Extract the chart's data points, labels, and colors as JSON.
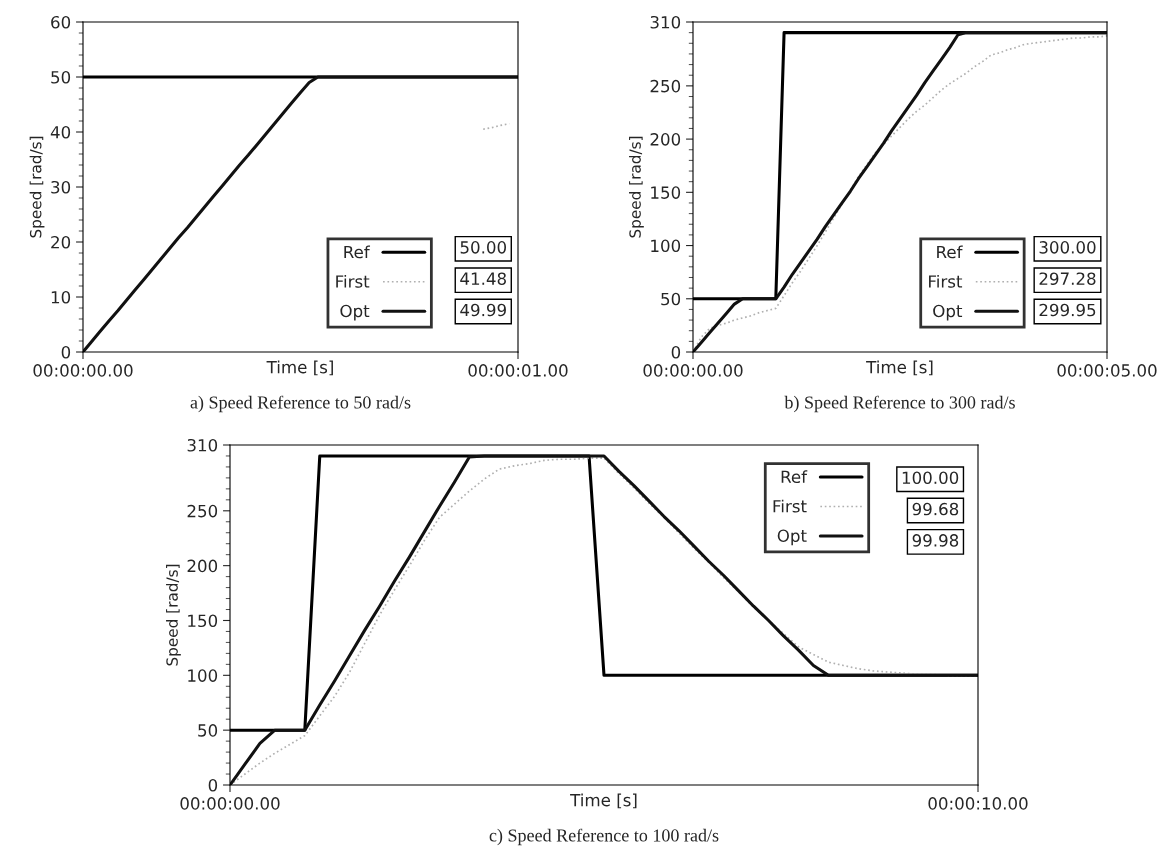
{
  "chart_data": [
    {
      "type": "line",
      "title": "a) Speed Reference to 50 rad/s",
      "xlabel": "Time [s]",
      "ylabel": "Speed [rad/s]",
      "categories": [
        "00:00:00.00",
        null,
        null,
        null,
        null,
        null,
        null,
        null,
        null,
        null,
        null,
        null,
        null,
        null,
        null,
        null,
        null,
        null,
        null,
        null,
        null,
        null,
        null,
        null,
        null,
        null,
        null,
        null,
        null,
        null,
        null,
        null,
        null,
        null,
        null,
        null,
        null,
        null,
        null,
        null,
        null,
        null,
        null,
        null,
        null,
        null,
        null,
        null,
        null,
        null,
        "00:00:01.00"
      ],
      "ylim": [
        0,
        60
      ],
      "yticks": [
        0,
        10,
        20,
        30,
        40,
        50,
        60
      ],
      "grid": false,
      "legend": "bottom right",
      "annotations": [
        "50.00",
        "41.48",
        "49.99"
      ],
      "series": [
        {
          "name": "Ref",
          "color": "#000000",
          "values": [
            50,
            50,
            50,
            50,
            50,
            50,
            50,
            50,
            50,
            50,
            50,
            50,
            50,
            50,
            50,
            50,
            50,
            50,
            50,
            50,
            50,
            50,
            50,
            50,
            50,
            50,
            50,
            50,
            50,
            50,
            50,
            50,
            50,
            50,
            50,
            50,
            50,
            50,
            50,
            50,
            50,
            50,
            50,
            50,
            50,
            50,
            50,
            50,
            50,
            50,
            50
          ]
        },
        {
          "name": "First",
          "color": "#b0b0b0",
          "line_style": "dotted",
          "values": [
            null,
            null,
            null,
            null,
            null,
            null,
            null,
            null,
            null,
            null,
            null,
            null,
            null,
            null,
            null,
            null,
            null,
            null,
            null,
            null,
            null,
            null,
            null,
            null,
            null,
            null,
            null,
            null,
            null,
            null,
            null,
            null,
            null,
            null,
            null,
            null,
            null,
            null,
            null,
            null,
            null,
            null,
            null,
            null,
            null,
            null,
            40.5,
            40.8,
            41.2,
            41.5,
            null
          ]
        },
        {
          "name": "Opt",
          "color": "#111111",
          "values": [
            0,
            1.9,
            3.8,
            5.7,
            7.5,
            9.4,
            11.3,
            13.2,
            15.1,
            17,
            18.9,
            20.8,
            22.6,
            24.5,
            26.4,
            28.3,
            30.2,
            32.1,
            34,
            35.8,
            37.7,
            39.6,
            41.5,
            43.4,
            45.3,
            47.2,
            49,
            50,
            50,
            50,
            50,
            50,
            50,
            50,
            50,
            50,
            50,
            50,
            50,
            50,
            50,
            50,
            50,
            50,
            50,
            50,
            50,
            50,
            50,
            50,
            50
          ]
        }
      ]
    },
    {
      "type": "line",
      "title": "b) Speed Reference to 300 rad/s",
      "xlabel": "Time [s]",
      "ylabel": "Speed [rad/s]",
      "categories": [
        "00:00:00.00",
        null,
        null,
        null,
        null,
        null,
        null,
        null,
        null,
        null,
        null,
        null,
        null,
        null,
        null,
        null,
        null,
        null,
        null,
        null,
        null,
        null,
        null,
        null,
        null,
        null,
        null,
        null,
        null,
        null,
        null,
        null,
        null,
        null,
        null,
        null,
        null,
        null,
        null,
        null,
        null,
        null,
        null,
        null,
        null,
        null,
        null,
        null,
        null,
        null,
        "00:00:05.00"
      ],
      "ylim": [
        0,
        310
      ],
      "yticks": [
        0,
        50,
        100,
        150,
        200,
        250,
        310
      ],
      "grid": false,
      "legend": "bottom right",
      "annotations": [
        "300.00",
        "297.28",
        "299.95"
      ],
      "series": [
        {
          "name": "Ref",
          "color": "#000000",
          "values": [
            50,
            50,
            50,
            50,
            50,
            50,
            50,
            50,
            50,
            50,
            50,
            300,
            300,
            300,
            300,
            300,
            300,
            300,
            300,
            300,
            300,
            300,
            300,
            300,
            300,
            300,
            300,
            300,
            300,
            300,
            300,
            300,
            300,
            300,
            300,
            300,
            300,
            300,
            300,
            300,
            300,
            300,
            300,
            300,
            300,
            300,
            300,
            300,
            300,
            300,
            300
          ]
        },
        {
          "name": "First",
          "color": "#b0b0b0",
          "line_style": "dotted",
          "values": [
            0,
            14,
            22,
            25,
            27,
            30,
            32,
            34,
            37,
            39,
            41,
            53,
            65,
            76,
            88,
            100,
            113,
            126,
            139,
            152,
            165,
            176,
            187,
            195,
            203,
            211,
            219,
            226,
            232,
            239,
            246,
            252,
            257,
            262,
            268,
            273,
            279,
            281,
            284,
            286,
            289,
            290,
            291,
            292,
            293,
            294,
            295,
            295,
            296,
            296,
            297
          ]
        },
        {
          "name": "Opt",
          "color": "#111111",
          "values": [
            0,
            9,
            18,
            27,
            36,
            45,
            50,
            50,
            50,
            50,
            50,
            61,
            73,
            84,
            95,
            106,
            118,
            129,
            140,
            151,
            163,
            174,
            185,
            196,
            208,
            219,
            230,
            241,
            253,
            264,
            275,
            286,
            298,
            300,
            300,
            300,
            300,
            300,
            300,
            300,
            300,
            300,
            300,
            300,
            300,
            300,
            300,
            300,
            300,
            300,
            300
          ]
        }
      ]
    },
    {
      "type": "line",
      "title": "c) Speed Reference to 100 rad/s",
      "xlabel": "Time [s]",
      "ylabel": "Speed [rad/s]",
      "categories": [
        "00:00:00.00",
        null,
        null,
        null,
        null,
        null,
        null,
        null,
        null,
        null,
        null,
        null,
        null,
        null,
        null,
        null,
        null,
        null,
        null,
        null,
        null,
        null,
        null,
        null,
        null,
        null,
        null,
        null,
        null,
        null,
        null,
        null,
        null,
        null,
        null,
        null,
        null,
        null,
        null,
        null,
        null,
        null,
        null,
        null,
        null,
        null,
        null,
        null,
        null,
        null,
        "00:00:10.00"
      ],
      "ylim": [
        0,
        310
      ],
      "yticks": [
        0,
        50,
        100,
        150,
        200,
        250,
        310
      ],
      "grid": false,
      "legend": "top right",
      "annotations": [
        "100.00",
        "99.68",
        "99.98"
      ],
      "series": [
        {
          "name": "Ref",
          "color": "#000000",
          "values": [
            50,
            50,
            50,
            50,
            50,
            50,
            300,
            300,
            300,
            300,
            300,
            300,
            300,
            300,
            300,
            300,
            300,
            300,
            300,
            300,
            300,
            300,
            300,
            300,
            300,
            100,
            100,
            100,
            100,
            100,
            100,
            100,
            100,
            100,
            100,
            100,
            100,
            100,
            100,
            100,
            100,
            100,
            100,
            100,
            100,
            100,
            100,
            100,
            100,
            100,
            100
          ]
        },
        {
          "name": "First",
          "color": "#b0b0b0",
          "line_style": "dotted",
          "values": [
            0,
            10,
            20,
            29,
            37,
            45,
            63,
            81,
            103,
            129,
            155,
            178,
            200,
            223,
            244,
            256,
            268,
            279,
            288,
            291,
            293,
            296,
            297,
            297,
            298,
            298,
            284,
            271,
            257,
            244,
            230,
            216,
            203,
            189,
            176,
            162,
            150,
            138,
            126,
            119,
            112,
            109,
            106,
            104,
            103,
            102,
            101,
            101,
            100,
            100,
            100
          ]
        },
        {
          "name": "Opt",
          "color": "#111111",
          "values": [
            0,
            19,
            38,
            50,
            50,
            50,
            73,
            95,
            118,
            141,
            163,
            186,
            208,
            231,
            254,
            276,
            299,
            300,
            300,
            300,
            300,
            300,
            300,
            300,
            300,
            300,
            286,
            273,
            259,
            245,
            232,
            218,
            204,
            191,
            177,
            163,
            150,
            136,
            123,
            109,
            100,
            100,
            100,
            100,
            100,
            100,
            100,
            100,
            100,
            100,
            100
          ]
        }
      ]
    }
  ]
}
